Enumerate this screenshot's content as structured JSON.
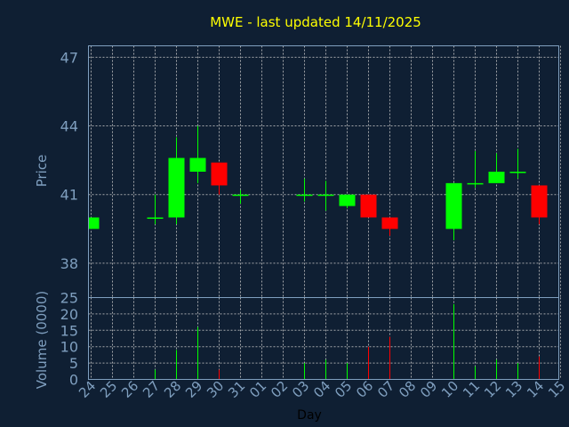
{
  "chart_data": {
    "type": "candlestick",
    "title": "MWE - last updated 14/11/2025",
    "price_panel": {
      "ylabel": "Price",
      "ylim": [
        36.5,
        47.5
      ],
      "yticks": [
        "47",
        "44",
        "41",
        "38"
      ]
    },
    "volume_panel": {
      "ylabel": "Volume (0000)",
      "ylim": [
        0,
        25
      ],
      "yticks": [
        "25",
        "20",
        "15",
        "10",
        "5",
        "0"
      ]
    },
    "xlabel": "Day",
    "categories": [
      "24",
      "25",
      "26",
      "27",
      "28",
      "29",
      "30",
      "31",
      "01",
      "02",
      "03",
      "04",
      "05",
      "06",
      "07",
      "08",
      "09",
      "10",
      "11",
      "12",
      "13",
      "14",
      "15"
    ],
    "candles": [
      {
        "day": "24",
        "open": 39.5,
        "close": 40.0,
        "high": 40.0,
        "low": 39.5,
        "volume": 0
      },
      {
        "day": "27",
        "open": 40.0,
        "close": 40.0,
        "high": 41.0,
        "low": 39.7,
        "volume": 3
      },
      {
        "day": "28",
        "open": 40.0,
        "close": 42.6,
        "high": 43.5,
        "low": 39.7,
        "volume": 9
      },
      {
        "day": "29",
        "open": 42.0,
        "close": 42.6,
        "high": 44.0,
        "low": 41.5,
        "volume": 16
      },
      {
        "day": "30",
        "open": 42.4,
        "close": 41.4,
        "high": 42.4,
        "low": 41.0,
        "volume": 3
      },
      {
        "day": "31",
        "open": 41.0,
        "close": 41.0,
        "high": 41.2,
        "low": 40.6,
        "volume": 0
      },
      {
        "day": "03",
        "open": 41.0,
        "close": 41.0,
        "high": 41.7,
        "low": 40.7,
        "volume": 5
      },
      {
        "day": "04",
        "open": 41.0,
        "close": 41.0,
        "high": 41.6,
        "low": 40.3,
        "volume": 6
      },
      {
        "day": "05",
        "open": 40.5,
        "close": 41.0,
        "high": 41.0,
        "low": 40.4,
        "volume": 5
      },
      {
        "day": "06",
        "open": 41.0,
        "close": 40.0,
        "high": 41.0,
        "low": 40.0,
        "volume": 10
      },
      {
        "day": "07",
        "open": 40.0,
        "close": 39.5,
        "high": 40.0,
        "low": 39.2,
        "volume": 13
      },
      {
        "day": "10",
        "open": 39.5,
        "close": 41.5,
        "high": 41.5,
        "low": 39.0,
        "volume": 23
      },
      {
        "day": "11",
        "open": 41.5,
        "close": 41.5,
        "high": 42.9,
        "low": 41.3,
        "volume": 4
      },
      {
        "day": "12",
        "open": 41.5,
        "close": 42.0,
        "high": 42.8,
        "low": 41.5,
        "volume": 6
      },
      {
        "day": "13",
        "open": 42.0,
        "close": 42.0,
        "high": 43.0,
        "low": 41.7,
        "volume": 5
      },
      {
        "day": "14",
        "open": 41.4,
        "close": 40.0,
        "high": 41.4,
        "low": 39.7,
        "volume": 7
      }
    ],
    "colors": {
      "background": "#0f1f33",
      "up": "#00ff00",
      "down": "#ff0000",
      "title": "#ffff00",
      "axis_text": "#7f9fbf",
      "grid": "#c8c8c8",
      "frame": "#7f9fbf"
    },
    "grid": true
  }
}
